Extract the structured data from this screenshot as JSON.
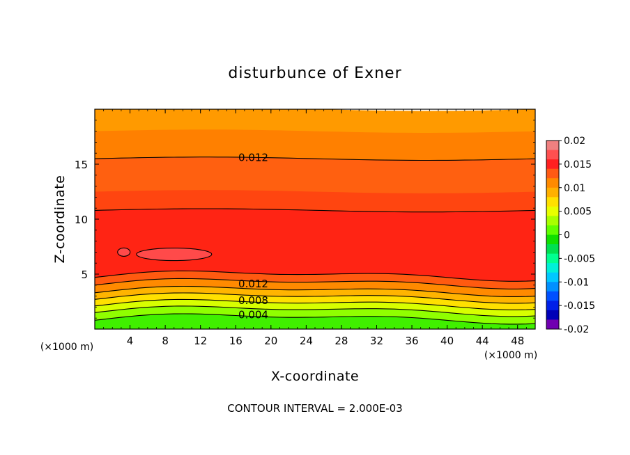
{
  "chart_data": {
    "type": "contour",
    "title": "disturbunce of Exner",
    "xlabel": "X-coordinate",
    "ylabel": "Z-coordinate",
    "x_unit": "(×1000 m)",
    "y_unit": "(×1000 m)",
    "xlim": [
      0,
      50
    ],
    "ylim": [
      0,
      20
    ],
    "x_ticks": [
      4,
      8,
      12,
      16,
      20,
      24,
      28,
      32,
      36,
      40,
      44,
      48
    ],
    "y_ticks": [
      5,
      10,
      15
    ],
    "footer": "CONTOUR INTERVAL = 2.000E-03",
    "contour_interval": 0.002,
    "contour_labels": [
      {
        "text": "0.012",
        "x": 18,
        "z": 15.6
      },
      {
        "text": "0.012",
        "x": 18,
        "z": 4.1
      },
      {
        "text": "0.008",
        "x": 18,
        "z": 2.6
      },
      {
        "text": "0.004",
        "x": 18,
        "z": 1.3
      }
    ],
    "colorbar": {
      "min": -0.02,
      "max": 0.02,
      "ticks": [
        "0.02",
        "0.015",
        "0.01",
        "0.005",
        "0",
        "-0.005",
        "-0.01",
        "-0.015",
        "-0.02"
      ],
      "colors": [
        "#f08080",
        "#ff5050",
        "#ff2020",
        "#ff5a14",
        "#ff8a00",
        "#ffb000",
        "#ffe000",
        "#e8ff00",
        "#a8ff00",
        "#60ff00",
        "#10e000",
        "#00e050",
        "#00ff90",
        "#00f0d8",
        "#00c8ff",
        "#0090ff",
        "#0050ff",
        "#0020e8",
        "#0000b8",
        "#7000b0"
      ]
    },
    "bands": [
      {
        "z_top": 20.0,
        "value": 0.009,
        "color": "#ff9a00"
      },
      {
        "z_top": 18.0,
        "value": 0.011,
        "color": "#ff8000"
      },
      {
        "z_top": 15.5,
        "value": 0.013,
        "color": "#ff6010"
      },
      {
        "z_top": 12.5,
        "value": 0.014,
        "color": "#ff4510"
      },
      {
        "z_top": 10.8,
        "value": 0.015,
        "color": "#ff2414"
      },
      {
        "z_top": 4.9,
        "value": 0.013,
        "color": "#ff5a10"
      },
      {
        "z_top": 4.2,
        "value": 0.011,
        "color": "#ff8a00"
      },
      {
        "z_top": 3.5,
        "value": 0.009,
        "color": "#ffb400"
      },
      {
        "z_top": 2.9,
        "value": 0.007,
        "color": "#ffe000"
      },
      {
        "z_top": 2.3,
        "value": 0.005,
        "color": "#d8ff00"
      },
      {
        "z_top": 1.7,
        "value": 0.003,
        "color": "#90ff00"
      },
      {
        "z_top": 1.0,
        "value": 0.001,
        "color": "#40f000"
      }
    ]
  }
}
